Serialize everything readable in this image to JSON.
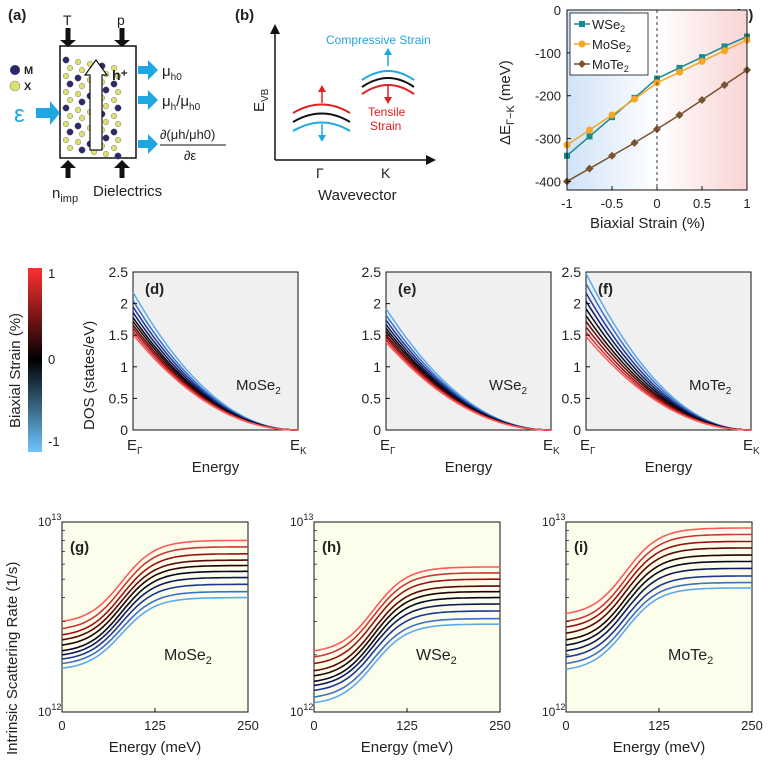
{
  "panel_a": {
    "label": "(a)",
    "top_left": "T",
    "top_right": "p",
    "legend_m": "M",
    "legend_x": "X",
    "hole": "h⁺",
    "epsilon": "ε",
    "out1_main": "μ",
    "out1_sub": "h0",
    "out2_main": "μ",
    "out2_sub": "h",
    "out2_tail": "/μ",
    "out2_tail_sub": "h0",
    "out3_num": "∂(μh/μh0)",
    "out3_den": "∂ε",
    "bottom_left_main": "n",
    "bottom_left_sub": "imp",
    "bottom_right": "Dielectrics"
  },
  "panel_b": {
    "label": "(b)",
    "ylabel_main": "E",
    "ylabel_sub": "VB",
    "xlabel": "Wavevector",
    "gamma": "Γ",
    "k": "K",
    "compressive": "Compressive Strain",
    "tensile_line1": "Tensile",
    "tensile_line2": "Strain",
    "color_compressive": "#1ea7e0",
    "color_tensile": "#e02020"
  },
  "chart_data": [
    {
      "panel": "(c)",
      "type": "line",
      "xlabel": "Biaxial Strain (%)",
      "ylabel": "ΔE Γ−K (meV)",
      "xlim": [
        -1,
        1
      ],
      "ylim": [
        -420,
        0
      ],
      "xticks": [
        "-1",
        "-0.5",
        "0",
        "0.5",
        "1"
      ],
      "yticks": [
        "-400",
        "-300",
        "-200",
        "-100",
        "0"
      ],
      "x": [
        -1,
        -0.75,
        -0.5,
        -0.25,
        0,
        0.25,
        0.5,
        0.75,
        1
      ],
      "series": [
        {
          "name": "WSe₂",
          "color": "#1a8a8a",
          "marker": "square",
          "values": [
            -340,
            -295,
            -250,
            -205,
            -160,
            -135,
            -110,
            -85,
            -62
          ]
        },
        {
          "name": "MoSe₂",
          "color": "#f5a623",
          "marker": "circle",
          "values": [
            -315,
            -280,
            -245,
            -208,
            -170,
            -145,
            -120,
            -95,
            -70
          ]
        },
        {
          "name": "MoTe₂",
          "color": "#7a5230",
          "marker": "diamond",
          "values": [
            -400,
            -370,
            -340,
            -310,
            -278,
            -245,
            -210,
            -175,
            -140
          ]
        }
      ]
    },
    {
      "panel": "(d)",
      "type": "line",
      "material": "MoSe₂",
      "xlabel": "Energy",
      "ylabel": "DOS (states/eV)",
      "xticks": [
        "E_Γ",
        "E_K"
      ],
      "yticks": [
        "0",
        "0.5",
        "1",
        "1.5",
        "2",
        "2.5"
      ],
      "ylim": [
        0,
        2.5
      ],
      "start_values": [
        2.18,
        2.05,
        1.95,
        1.86,
        1.78,
        1.72,
        1.66,
        1.61,
        1.56,
        1.51
      ]
    },
    {
      "panel": "(e)",
      "type": "line",
      "material": "WSe₂",
      "xlabel": "Energy",
      "xticks": [
        "E_Γ",
        "E_K"
      ],
      "yticks": [
        "0",
        "0.5",
        "1",
        "1.5",
        "2",
        "2.5"
      ],
      "ylim": [
        0,
        2.5
      ],
      "start_values": [
        1.92,
        1.82,
        1.74,
        1.67,
        1.61,
        1.56,
        1.51,
        1.47,
        1.43,
        1.39
      ]
    },
    {
      "panel": "(f)",
      "type": "line",
      "material": "MoTe₂",
      "xlabel": "Energy",
      "xticks": [
        "E_Γ",
        "E_K"
      ],
      "yticks": [
        "0",
        "0.5",
        "1",
        "1.5",
        "2",
        "2.5"
      ],
      "ylim": [
        0,
        2.5
      ],
      "start_values": [
        2.48,
        2.32,
        2.17,
        2.04,
        1.92,
        1.81,
        1.72,
        1.63,
        1.55,
        1.48
      ]
    },
    {
      "panel": "(g)",
      "type": "line",
      "material": "MoSe₂",
      "xlabel": "Energy (meV)",
      "ylabel": "Intrinsic Scattering Rate (1/s)",
      "yscale": "log",
      "ylim": [
        1000000000000.0,
        10000000000000.0
      ],
      "xlim": [
        0,
        250
      ],
      "xticks": [
        "0",
        "125",
        "250"
      ],
      "start_values": [
        3000000000000.0,
        2750000000000.0,
        2550000000000.0,
        2400000000000.0,
        2250000000000.0,
        2100000000000.0,
        2000000000000.0,
        1900000000000.0,
        1800000000000.0,
        1700000000000.0
      ],
      "end_values": [
        8000000000000.0,
        7400000000000.0,
        6800000000000.0,
        6300000000000.0,
        5900000000000.0,
        5500000000000.0,
        5100000000000.0,
        4700000000000.0,
        4300000000000.0,
        4000000000000.0
      ]
    },
    {
      "panel": "(h)",
      "type": "line",
      "material": "WSe₂",
      "xlabel": "Energy (meV)",
      "yscale": "log",
      "ylim": [
        1000000000000.0,
        10000000000000.0
      ],
      "xlim": [
        0,
        250
      ],
      "xticks": [
        "0",
        "125",
        "250"
      ],
      "start_values": [
        2100000000000.0,
        1950000000000.0,
        1800000000000.0,
        1650000000000.0,
        1550000000000.0,
        1450000000000.0,
        1380000000000.0,
        1300000000000.0,
        1200000000000.0,
        1120000000000.0
      ],
      "end_values": [
        5800000000000.0,
        5400000000000.0,
        5000000000000.0,
        4600000000000.0,
        4300000000000.0,
        4000000000000.0,
        3700000000000.0,
        3400000000000.0,
        3100000000000.0,
        2900000000000.0
      ]
    },
    {
      "panel": "(i)",
      "type": "line",
      "material": "MoTe₂",
      "xlabel": "Energy (meV)",
      "yscale": "log",
      "ylim": [
        1000000000000.0,
        10000000000000.0
      ],
      "xlim": [
        0,
        250
      ],
      "xticks": [
        "0",
        "125",
        "250"
      ],
      "start_values": [
        3300000000000.0,
        3000000000000.0,
        2800000000000.0,
        2600000000000.0,
        2400000000000.0,
        2250000000000.0,
        2100000000000.0,
        1950000000000.0,
        1800000000000.0,
        1680000000000.0
      ],
      "end_values": [
        9300000000000.0,
        8600000000000.0,
        7900000000000.0,
        7300000000000.0,
        6700000000000.0,
        6200000000000.0,
        5700000000000.0,
        5200000000000.0,
        4800000000000.0,
        4500000000000.0
      ]
    }
  ],
  "colorbar": {
    "label": "Biaxial Strain (%)",
    "ticks": [
      "1",
      "0",
      "-1"
    ],
    "colors": [
      "#ff4040",
      "#000000",
      "#59b7ff"
    ]
  },
  "row2_labels": {
    "xtick_gamma": "E",
    "xtick_gamma_sub": "Γ",
    "xtick_k": "E",
    "xtick_k_sub": "K",
    "energy": "Energy",
    "ylabel": "DOS (states/eV)",
    "mat_d_main": "MoSe",
    "mat_e_main": "WSe",
    "mat_f_main": "MoTe",
    "mat_sub": "2",
    "ytick_0": "0",
    "ytick_05": "0.5",
    "ytick_1": "1",
    "ytick_15": "1.5",
    "ytick_2": "2",
    "ytick_25": "2.5"
  },
  "row3_labels": {
    "ylabel": "Intrinsic Scattering Rate (1/s)",
    "ytop_base": "10",
    "ytop_exp": "13",
    "ybot_base": "10",
    "ybot_exp": "12",
    "xlabel": "Energy (meV)",
    "x0": "0",
    "x125": "125",
    "x250": "250",
    "mat_g_main": "MoSe",
    "mat_h_main": "WSe",
    "mat_i_main": "MoTe",
    "mat_sub": "2"
  },
  "panel_c_labels": {
    "ylabel_main": "ΔE",
    "ylabel_sub": "Γ−K",
    "ylabel_unit": "(meV)",
    "legend_1": "WSe",
    "legend_2": "MoSe",
    "legend_3": "MoTe",
    "legend_sub": "2"
  }
}
